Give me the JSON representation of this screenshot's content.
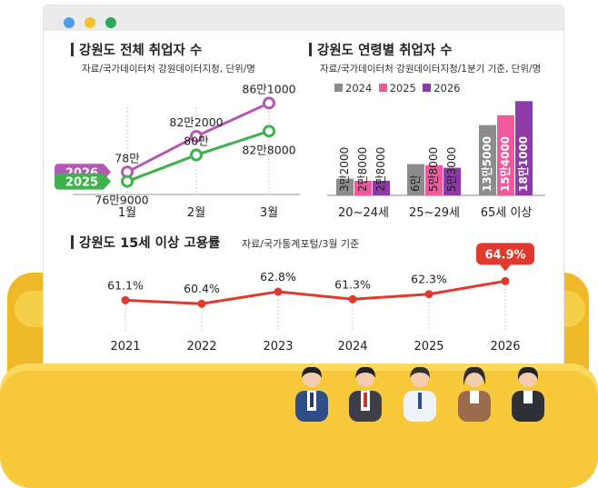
{
  "window": {
    "dots": [
      {
        "name": "blue",
        "color": "#4a9fe6"
      },
      {
        "name": "yellow",
        "color": "#f4c22c"
      },
      {
        "name": "green",
        "color": "#2fa85a"
      }
    ]
  },
  "colors": {
    "y2024": "#8c8c8c",
    "y2025": "#ef5a9c",
    "y2026": "#8c3aa8",
    "line2026": "#b558b5",
    "line2025": "#3fb24e",
    "rate": "#e03a2c"
  },
  "chart_data": [
    {
      "type": "line",
      "title": "강원도 전체 취업자 수",
      "subtitle": "자료/국가데이터처 강원데이터지청, 단위/명",
      "categories": [
        "1월",
        "2월",
        "3월"
      ],
      "series": [
        {
          "name": "2026",
          "values": [
            780000,
            822000,
            861000
          ],
          "labels": [
            "78만",
            "82만2000",
            "86만1000"
          ]
        },
        {
          "name": "2025",
          "values": [
            769000,
            800000,
            828000
          ],
          "labels": [
            "76만9000",
            "80만",
            "82만8000"
          ]
        }
      ],
      "ylim": [
        760000,
        870000
      ]
    },
    {
      "type": "bar",
      "title": "강원도 연령별 취업자 수",
      "subtitle": "자료/국가데이터처 강원데이터지청/1분기 기준, 단위/명",
      "categories": [
        "20~24세",
        "25~29세",
        "65세 이상"
      ],
      "series": [
        {
          "name": "2024",
          "values": [
            32000,
            60000,
            135000
          ],
          "labels": [
            "3만2000",
            "6만",
            "13만5000"
          ]
        },
        {
          "name": "2025",
          "values": [
            28000,
            58000,
            154000
          ],
          "labels": [
            "2만8000",
            "5만8000",
            "15만4000"
          ]
        },
        {
          "name": "2026",
          "values": [
            28000,
            53000,
            181000
          ],
          "labels": [
            "2만8000",
            "5만3000",
            "18만1000"
          ]
        }
      ],
      "ylim": [
        0,
        185000
      ]
    },
    {
      "type": "line",
      "title": "강원도 15세 이상 고용률",
      "subtitle": "자료/국가통계포털/3월 기준",
      "categories": [
        "2021",
        "2022",
        "2023",
        "2024",
        "2025",
        "2026"
      ],
      "series": [
        {
          "values": [
            61.1,
            60.4,
            62.8,
            61.3,
            62.3,
            64.9
          ],
          "labels": [
            "61.1%",
            "60.4%",
            "62.8%",
            "61.3%",
            "62.3%",
            "64.9%"
          ]
        }
      ],
      "ylim": [
        59.0,
        65.5
      ]
    }
  ]
}
